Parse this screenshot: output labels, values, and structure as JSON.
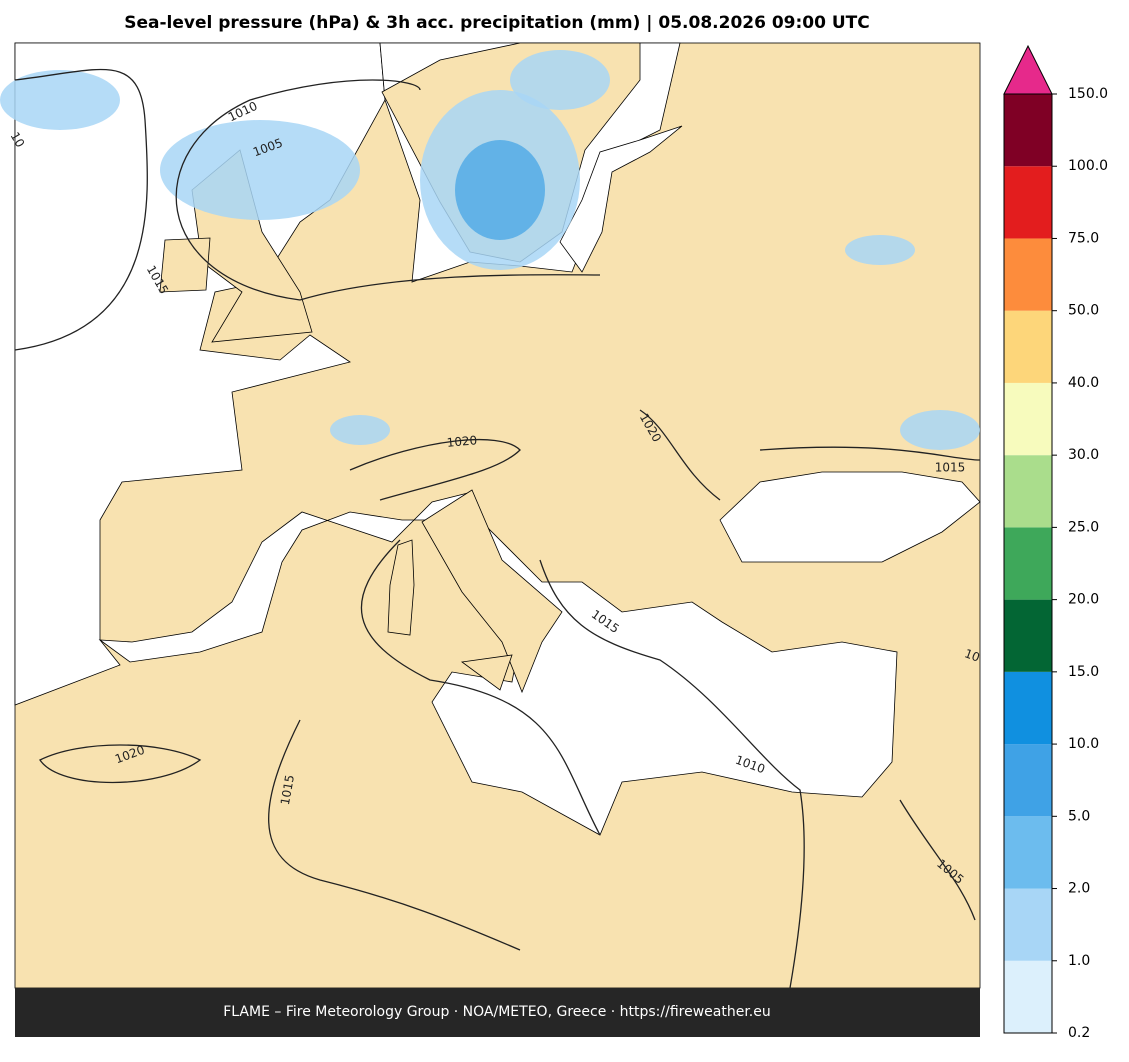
{
  "title": "Sea-level pressure (hPa) & 3h acc. precipitation (mm)  |  05.08.2026 09:00 UTC",
  "footer": "FLAME – Fire Meteorology Group · NOA/METEO, Greece · https://fireweather.eu",
  "colorbar": {
    "ticks": [
      0.2,
      {
        "value": 1,
        "label": "1.0"
      },
      {
        "value": 2,
        "label": "2.0"
      },
      {
        "value": 5,
        "label": "5.0"
      },
      {
        "value": 10,
        "label": "10.0"
      },
      {
        "value": 15,
        "label": "15.0"
      },
      {
        "value": 20,
        "label": "20.0"
      },
      {
        "value": 25,
        "label": "25.0"
      },
      {
        "value": 30,
        "label": "30.0"
      },
      {
        "value": 40,
        "label": "40.0"
      },
      {
        "value": 50,
        "label": "50.0"
      },
      {
        "value": 75,
        "label": "75.0"
      },
      {
        "value": 100,
        "label": "100.0"
      },
      {
        "value": 150,
        "label": "150.0"
      }
    ],
    "colors": [
      "#dcf0fc",
      "#a8d6f6",
      "#6cbcee",
      "#3fa2e6",
      "#1090e0",
      "#036634",
      "#3ea85a",
      "#aadd8c",
      "#f7fbbd",
      "#fdd67a",
      "#fd8c3c",
      "#e31d1e",
      "#7f0025"
    ],
    "extend_color": "#e6298b"
  },
  "contour_labels": [
    "1010",
    "1005",
    "1015",
    "1020",
    "1020",
    "1015",
    "1015",
    "1010",
    "1020",
    "1015",
    "1005",
    "10",
    "10"
  ]
}
